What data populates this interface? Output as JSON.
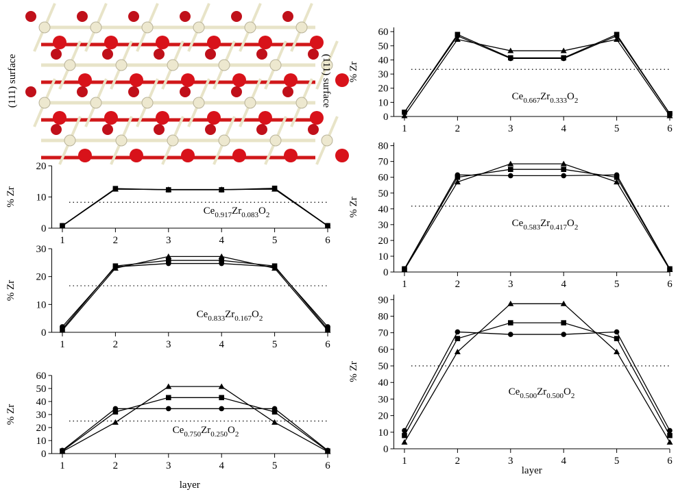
{
  "structure": {
    "left_label": "(111) surface",
    "right_label": "(111) surface"
  },
  "chart_data": [
    {
      "type": "line",
      "ylabel": "% Zr",
      "annotation": [
        [
          "Ce",
          "0.917"
        ],
        [
          "Zr",
          "0.083"
        ],
        [
          "O",
          "2"
        ]
      ],
      "categories": [
        1,
        2,
        3,
        4,
        5,
        6
      ],
      "xlim": [
        0.8,
        6
      ],
      "xticks": [
        1,
        2,
        3,
        4,
        5,
        6
      ],
      "ylim": [
        0,
        20
      ],
      "yticks": [
        0,
        10,
        20
      ],
      "hline": 8.3,
      "series": [
        {
          "marker": "circle",
          "color": "#000000",
          "values": [
            0.8,
            12.6,
            12.3,
            12.3,
            12.6,
            0.8
          ]
        },
        {
          "marker": "square",
          "color": "#000000",
          "values": [
            0.8,
            12.7,
            12.3,
            12.3,
            12.8,
            0.8
          ]
        },
        {
          "marker": "triangle",
          "color": "#000000",
          "values": [
            0.7,
            12.5,
            12.4,
            12.4,
            12.5,
            0.7
          ]
        }
      ]
    },
    {
      "type": "line",
      "ylabel": "% Zr",
      "annotation": [
        [
          "Ce",
          "0.833"
        ],
        [
          "Zr",
          "0.167"
        ],
        [
          "O",
          "2"
        ]
      ],
      "categories": [
        1,
        2,
        3,
        4,
        5,
        6
      ],
      "xlim": [
        0.8,
        6
      ],
      "xticks": [
        1,
        2,
        3,
        4,
        5,
        6
      ],
      "ylim": [
        0,
        30
      ],
      "yticks": [
        0,
        10,
        20,
        30
      ],
      "hline": 16.7,
      "series": [
        {
          "marker": "circle",
          "color": "#000000",
          "values": [
            2,
            23.5,
            24.7,
            24.7,
            23.5,
            2
          ]
        },
        {
          "marker": "square",
          "color": "#000000",
          "values": [
            1.2,
            23.8,
            25.8,
            25.8,
            23.8,
            1.2
          ]
        },
        {
          "marker": "triangle",
          "color": "#000000",
          "values": [
            0.7,
            23,
            27.2,
            27.2,
            23,
            0.7
          ]
        }
      ]
    },
    {
      "type": "line",
      "ylabel": "% Zr",
      "xlabel": "layer",
      "annotation": [
        [
          "Ce",
          "0.750"
        ],
        [
          "Zr",
          "0.250"
        ],
        [
          "O",
          "2"
        ]
      ],
      "categories": [
        1,
        2,
        3,
        4,
        5,
        6
      ],
      "xlim": [
        0.8,
        6
      ],
      "xticks": [
        1,
        2,
        3,
        4,
        5,
        6
      ],
      "ylim": [
        0,
        60
      ],
      "yticks": [
        0,
        10,
        20,
        30,
        40,
        50,
        60
      ],
      "hline": 25,
      "series": [
        {
          "marker": "circle",
          "color": "#000000",
          "values": [
            2.5,
            34.5,
            34.5,
            34.5,
            34.5,
            2.5
          ]
        },
        {
          "marker": "square",
          "color": "#000000",
          "values": [
            2,
            32,
            43,
            43,
            32,
            2
          ]
        },
        {
          "marker": "triangle",
          "color": "#000000",
          "values": [
            1.5,
            24,
            51.5,
            51.5,
            24,
            1.5
          ]
        }
      ]
    },
    {
      "type": "line",
      "ylabel": "% Zr",
      "annotation": [
        [
          "Ce",
          "0.667"
        ],
        [
          "Zr",
          "0.333"
        ],
        [
          "O",
          "2"
        ]
      ],
      "categories": [
        1,
        2,
        3,
        4,
        5,
        6
      ],
      "xlim": [
        0.8,
        6
      ],
      "xticks": [
        1,
        2,
        3,
        4,
        5,
        6
      ],
      "ylim": [
        0,
        63
      ],
      "yticks": [
        0,
        10,
        20,
        30,
        40,
        50,
        60
      ],
      "hline": 33.3,
      "series": [
        {
          "marker": "circle",
          "color": "#000000",
          "values": [
            3,
            57,
            41,
            41,
            57,
            2
          ]
        },
        {
          "marker": "square",
          "color": "#000000",
          "values": [
            3,
            58,
            41.5,
            41.5,
            58,
            2
          ]
        },
        {
          "marker": "triangle",
          "color": "#000000",
          "values": [
            0.5,
            54.5,
            46.5,
            46.5,
            54.5,
            0.5
          ]
        }
      ]
    },
    {
      "type": "line",
      "ylabel": "% Zr",
      "annotation": [
        [
          "Ce",
          "0.583"
        ],
        [
          "Zr",
          "0.417"
        ],
        [
          "O",
          "2"
        ]
      ],
      "categories": [
        1,
        2,
        3,
        4,
        5,
        6
      ],
      "xlim": [
        0.8,
        6
      ],
      "xticks": [
        1,
        2,
        3,
        4,
        5,
        6
      ],
      "ylim": [
        0,
        82
      ],
      "yticks": [
        0,
        10,
        20,
        30,
        40,
        50,
        60,
        70,
        80
      ],
      "hline": 41.7,
      "series": [
        {
          "marker": "circle",
          "color": "#000000",
          "values": [
            2,
            61.5,
            61,
            61,
            61.5,
            2
          ]
        },
        {
          "marker": "square",
          "color": "#000000",
          "values": [
            2,
            60,
            65,
            65,
            60,
            2
          ]
        },
        {
          "marker": "triangle",
          "color": "#000000",
          "values": [
            1.5,
            57,
            68.5,
            68.5,
            57,
            1.5
          ]
        }
      ]
    },
    {
      "type": "line",
      "ylabel": "% Zr",
      "xlabel": "layer",
      "annotation": [
        [
          "Ce",
          "0.500"
        ],
        [
          "Zr",
          "0.500"
        ],
        [
          "O",
          "2"
        ]
      ],
      "categories": [
        1,
        2,
        3,
        4,
        5,
        6
      ],
      "xlim": [
        0.8,
        6
      ],
      "xticks": [
        1,
        2,
        3,
        4,
        5,
        6
      ],
      "ylim": [
        0,
        93
      ],
      "yticks": [
        0,
        10,
        20,
        30,
        40,
        50,
        60,
        70,
        80,
        90
      ],
      "hline": 50,
      "series": [
        {
          "marker": "circle",
          "color": "#000000",
          "values": [
            11,
            70.5,
            69,
            69,
            70.5,
            11
          ]
        },
        {
          "marker": "square",
          "color": "#000000",
          "values": [
            8,
            66.5,
            76,
            76,
            66.5,
            8
          ]
        },
        {
          "marker": "triangle",
          "color": "#000000",
          "values": [
            4,
            58.5,
            87.5,
            87.5,
            58.5,
            4
          ]
        }
      ]
    }
  ]
}
